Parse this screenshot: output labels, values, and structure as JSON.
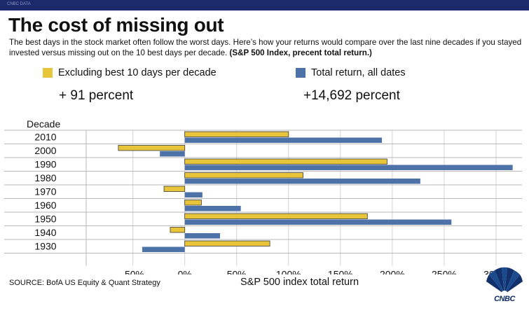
{
  "brand": {
    "topbar_tag": "CNBC DATA",
    "logo_text": "CNBC"
  },
  "colors": {
    "excluding": "#e8c43b",
    "total": "#4c72a8",
    "topbar": "#1c2a6b"
  },
  "chart_data": {
    "type": "bar",
    "orientation": "horizontal",
    "title": "The cost of missing out",
    "subtitle": "The best days in the stock market often follow the worst days. Here’s how your returns would compare over the last nine decades if you stayed invested versus missing out on the 10 best days per decade.",
    "subtitle_bold": "(S&P 500 Index, precent total return.)",
    "ylabel": "Decade",
    "xlabel": "S&P 500 index total return",
    "source": "SOURCE: BofA US Equity & Quant Strategy",
    "categories": [
      "2010",
      "2000",
      "1990",
      "1980",
      "1970",
      "1960",
      "1950",
      "1940",
      "1930"
    ],
    "series": [
      {
        "name": "Excluding best 10 days per decade",
        "total_label": "+ 91 percent",
        "values": [
          100,
          -64,
          195,
          114,
          -20,
          16,
          176,
          -14,
          82
        ]
      },
      {
        "name": "Total return, all dates",
        "total_label": "+14,692 percent",
        "values": [
          190,
          -24,
          316,
          227,
          17,
          54,
          257,
          34,
          -41
        ]
      }
    ],
    "x_ticks": [
      "-50%",
      "0%",
      "50%",
      "100%",
      "150%",
      "200%",
      "250%",
      "300%"
    ],
    "x_tick_values": [
      -50,
      0,
      50,
      100,
      150,
      200,
      250,
      300
    ],
    "xlim": [
      -95,
      325
    ],
    "grid": true,
    "legend_position": "top"
  }
}
